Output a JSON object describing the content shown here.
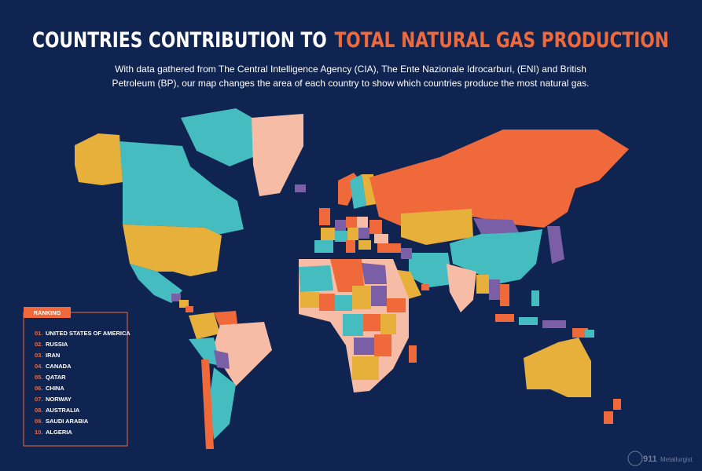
{
  "header": {
    "title_part1": "COUNTRIES CONTRIBUTION TO",
    "title_part2": "TOTAL NATURAL GAS PRODUCTION",
    "subtitle_lines": [
      "With data gathered from The Central Intelligence Agency (CIA), The Ente Nazionale Idrocarburi, (ENI) and British",
      "Petroleum (BP), our map changes the area of each country to show which countries produce the most natural gas."
    ]
  },
  "ranking": {
    "heading": "RANKING",
    "items": [
      {
        "rank": "01.",
        "name": "UNITED STATES OF AMERICA"
      },
      {
        "rank": "02.",
        "name": "RUSSIA"
      },
      {
        "rank": "03.",
        "name": "IRAN"
      },
      {
        "rank": "04.",
        "name": "CANADA"
      },
      {
        "rank": "05.",
        "name": "QATAR"
      },
      {
        "rank": "06.",
        "name": "CHINA"
      },
      {
        "rank": "07.",
        "name": "NORWAY"
      },
      {
        "rank": "08.",
        "name": "AUSTRALIA"
      },
      {
        "rank": "09.",
        "name": "SAUDI ARABIA"
      },
      {
        "rank": "10.",
        "name": "ALGERIA"
      }
    ]
  },
  "logo": {
    "number": "911",
    "text": "Metallurgist"
  }
}
